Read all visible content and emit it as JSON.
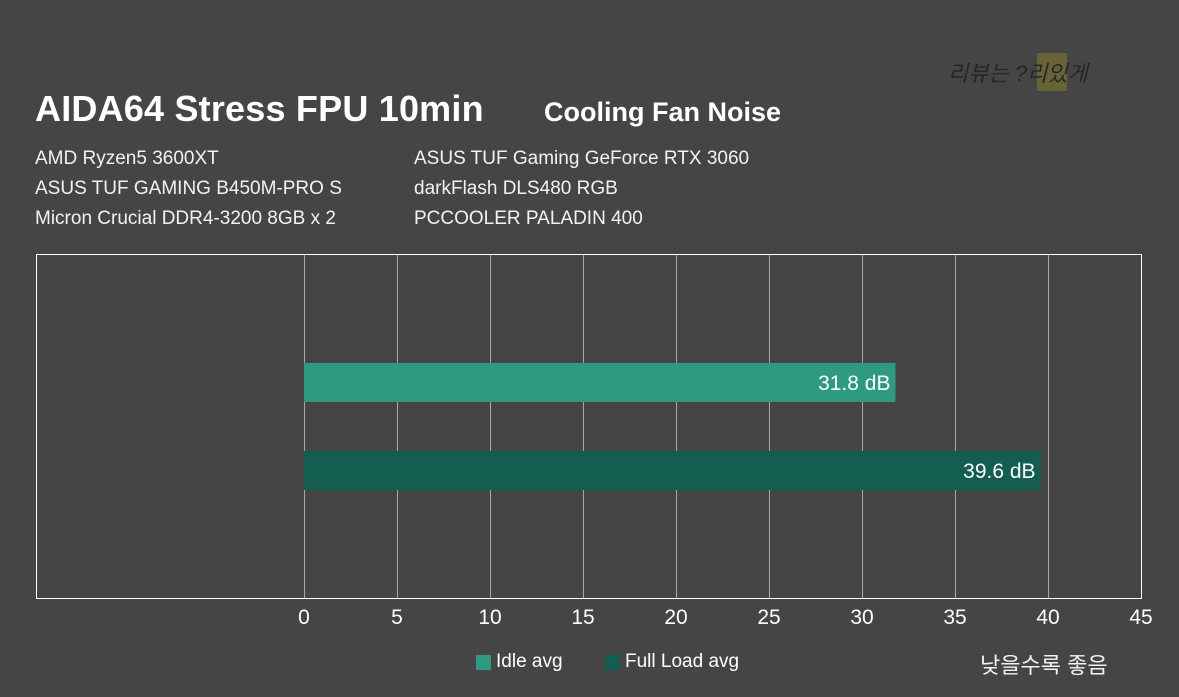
{
  "title": "AIDA64 Stress FPU 10min",
  "subtitle": "Cooling Fan Noise",
  "watermark": "리뷰는 ?리있게",
  "specs_left": [
    "AMD Ryzen5 3600XT",
    "ASUS TUF GAMING B450M-PRO S",
    "Micron Crucial DDR4-3200 8GB x 2"
  ],
  "specs_right": [
    "ASUS TUF Gaming GeForce RTX 3060",
    "darkFlash DLS480 RGB",
    "PCCOOLER PALADIN 400"
  ],
  "note": "낮을수록 좋음",
  "colors": {
    "background": "#454545",
    "idle": "#2e9a82",
    "full": "#135e50"
  },
  "chart_data": {
    "type": "bar",
    "orientation": "horizontal",
    "title": "AIDA64 Stress FPU 10min",
    "subtitle": "Cooling Fan Noise",
    "series": [
      {
        "name": "Idle avg",
        "values": [
          31.8
        ],
        "labels": [
          "31.8 dB"
        ],
        "color": "#2e9a82"
      },
      {
        "name": "Full Load avg",
        "values": [
          39.6
        ],
        "labels": [
          "39.6 dB"
        ],
        "color": "#135e50"
      }
    ],
    "xlim": [
      0,
      45
    ],
    "xticks": [
      0,
      5,
      10,
      15,
      20,
      25,
      30,
      35,
      40,
      45
    ],
    "grid": true,
    "legend": "bottom"
  }
}
